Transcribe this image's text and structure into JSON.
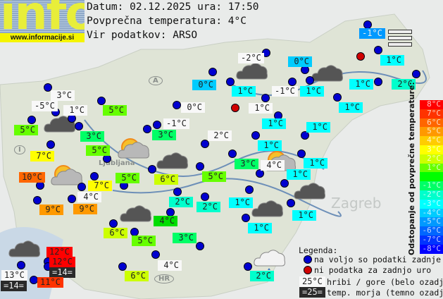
{
  "logo": {
    "text": "info",
    "url": "www.informacije.si"
  },
  "header": {
    "date_line": "Datum: 02.12.2025 ura: 17:50",
    "avg_line": "Povprečna temperatura: 4°C",
    "source_line": "Vir podatkov: ARSO"
  },
  "map_labels": [
    "A",
    "I",
    "HR",
    "Zagreb",
    "Ljubljana"
  ],
  "stations": [
    {
      "t": "3°C",
      "c": "#f8f8f8"
    },
    {
      "t": "-5°C",
      "c": "#f8f8f8"
    },
    {
      "t": "1°C",
      "c": "#f8f8f8"
    },
    {
      "t": "5°C",
      "c": "#66ff00"
    },
    {
      "t": "5°C",
      "c": "#66ff00"
    },
    {
      "t": "3°C",
      "c": "#00ff66"
    },
    {
      "t": "5°C",
      "c": "#66ff00"
    },
    {
      "t": "7°C",
      "c": "#ffff00"
    },
    {
      "t": "0°C",
      "c": "#f8f8f8"
    },
    {
      "t": "-1°C",
      "c": "#f8f8f8"
    },
    {
      "t": "3°C",
      "c": "#00ff66"
    },
    {
      "t": "2°C",
      "c": "#f8f8f8"
    },
    {
      "t": "0°C",
      "c": "#00ccff"
    },
    {
      "t": "-2°C",
      "c": "#f8f8f8"
    },
    {
      "t": "0°C",
      "c": "#00ccff"
    },
    {
      "t": "-1°C",
      "c": "#0099ff"
    },
    {
      "t": "1°C",
      "c": "#00ffff"
    },
    {
      "t": "1°C",
      "c": "#00ffff"
    },
    {
      "t": "-1°C",
      "c": "#f8f8f8"
    },
    {
      "t": "1°C",
      "c": "#00ffff"
    },
    {
      "t": "1°C",
      "c": "#00ffff"
    },
    {
      "t": "2°C",
      "c": "#00ffcc"
    },
    {
      "t": "1°C",
      "c": "#f8f8f8"
    },
    {
      "t": "1°C",
      "c": "#00ffff"
    },
    {
      "t": "1°C",
      "c": "#00ffff"
    },
    {
      "t": "1°C",
      "c": "#00ffff"
    },
    {
      "t": "1°C",
      "c": "#00ffff"
    },
    {
      "t": "3°C",
      "c": "#00ff66"
    },
    {
      "t": "4°C",
      "c": "#f8f8f8"
    },
    {
      "t": "1°C",
      "c": "#00ffff"
    },
    {
      "t": "1°C",
      "c": "#00ffff"
    },
    {
      "t": "1°C",
      "c": "#00ffff"
    },
    {
      "t": "1°C",
      "c": "#00ffff"
    },
    {
      "t": "1°C",
      "c": "#00ffff"
    },
    {
      "t": "2°C",
      "c": "#00ffcc"
    },
    {
      "t": "10°C",
      "c": "#ff6600"
    },
    {
      "t": "7°C",
      "c": "#ffff00"
    },
    {
      "t": "4°C",
      "c": "#f8f8f8"
    },
    {
      "t": "9°C",
      "c": "#ff9900"
    },
    {
      "t": "9°C",
      "c": "#ff9900"
    },
    {
      "t": "5°C",
      "c": "#66ff00"
    },
    {
      "t": "6°C",
      "c": "#ccff00"
    },
    {
      "t": "5°C",
      "c": "#66ff00"
    },
    {
      "t": "2°C",
      "c": "#00ffcc"
    },
    {
      "t": "2°C",
      "c": "#00ffcc"
    },
    {
      "t": "4°C",
      "c": "#00dd00"
    },
    {
      "t": "6°C",
      "c": "#ccff00"
    },
    {
      "t": "5°C",
      "c": "#66ff00"
    },
    {
      "t": "3°C",
      "c": "#00ff66"
    },
    {
      "t": "4°C",
      "c": "#f8f8f8"
    },
    {
      "t": "6°C",
      "c": "#ccff00"
    },
    {
      "t": "12°C",
      "c": "#ff0000"
    },
    {
      "t": "12°C",
      "c": "#ff0000"
    },
    {
      "t": "=14=",
      "c": "#2a2a2a"
    },
    {
      "t": "13°C",
      "c": "#f8f8f8"
    },
    {
      "t": "=14=",
      "c": "#2a2a2a"
    },
    {
      "t": "11°C",
      "c": "#ff3300"
    }
  ],
  "scale": {
    "title": "Odstopanje od povprečne temperature:",
    "rows": [
      {
        "t": "8°C",
        "c": "#ff0000"
      },
      {
        "t": "7°C",
        "c": "#ff3300"
      },
      {
        "t": "6°C",
        "c": "#ff6600"
      },
      {
        "t": "5°C",
        "c": "#ff9900"
      },
      {
        "t": "4°C",
        "c": "#ffcc00"
      },
      {
        "t": "3°C",
        "c": "#ffff00"
      },
      {
        "t": "2°C",
        "c": "#ccff00"
      },
      {
        "t": "1°C",
        "c": "#66ff00"
      },
      {
        "t": "",
        "c": "#00ff00"
      },
      {
        "t": "-1°C",
        "c": "#00ff66"
      },
      {
        "t": "-2°C",
        "c": "#00ffcc"
      },
      {
        "t": "-3°C",
        "c": "#00ffff"
      },
      {
        "t": "-4°C",
        "c": "#00ccff"
      },
      {
        "t": "-5°C",
        "c": "#0099ff"
      },
      {
        "t": "-6°C",
        "c": "#0066ff"
      },
      {
        "t": "-7°C",
        "c": "#0033ff"
      },
      {
        "t": "-8°C",
        "c": "#0000ff"
      }
    ]
  },
  "legend": {
    "title": "Legenda:",
    "blue": "na voljo so podatki zadnje ure",
    "red": "ni podatka za zadnjo uro",
    "mountain_sample": "25°C",
    "mountain": "hribi / gore (belo ozadje)",
    "sea_sample": "=25=",
    "sea": "temp. morja (temno ozadje)"
  }
}
